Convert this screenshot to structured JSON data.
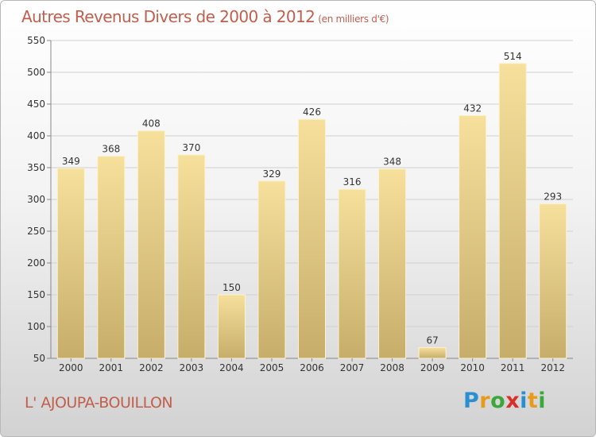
{
  "title": "Autres Revenus Divers de 2000 à 2012",
  "subtitle": "(en milliers d'€)",
  "town": "L' AJOUPA-BOUILLON",
  "logo": {
    "letters": [
      "P",
      "r",
      "o",
      "x",
      "i",
      "t",
      "i"
    ],
    "colors": [
      "#2a8fd0",
      "#e89a1a",
      "#3aa83a",
      "#d8302a",
      "#2a8fd0",
      "#e89a1a",
      "#3aa83a"
    ]
  },
  "colors": {
    "title": "#c05f4d",
    "bar_top": "#f6e09c",
    "bar_bottom": "#c6ad6a",
    "grid": "#d0d0d0",
    "axis": "#888888"
  },
  "chart_data": {
    "type": "bar",
    "title": "Autres Revenus Divers de 2000 à 2012",
    "subtitle": "(en milliers d'€)",
    "categories": [
      "2000",
      "2001",
      "2002",
      "2003",
      "2004",
      "2005",
      "2006",
      "2007",
      "2008",
      "2009",
      "2010",
      "2011",
      "2012"
    ],
    "values": [
      349,
      368,
      408,
      370,
      150,
      329,
      426,
      316,
      348,
      67,
      432,
      514,
      293
    ],
    "ylim": [
      50,
      550
    ],
    "yticks": [
      50,
      100,
      150,
      200,
      250,
      300,
      350,
      400,
      450,
      500,
      550
    ],
    "grid": true,
    "legend": "none",
    "data_labels": true
  }
}
